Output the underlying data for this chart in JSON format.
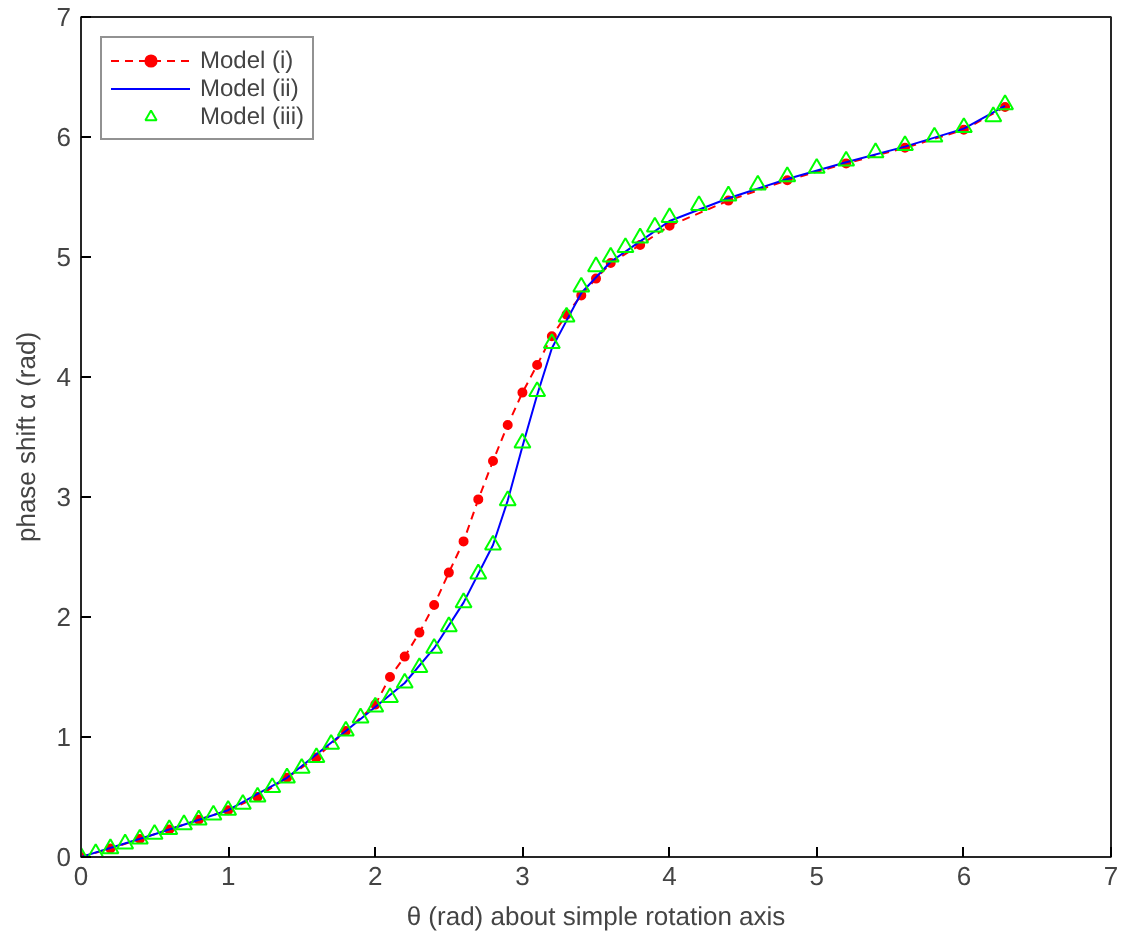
{
  "chart_data": {
    "type": "line",
    "xlabel": "θ (rad) about simple rotation axis",
    "ylabel": "phase shift α (rad)",
    "xlim": [
      0,
      7
    ],
    "ylim": [
      0,
      7
    ],
    "xticks": [
      0,
      1,
      2,
      3,
      4,
      5,
      6,
      7
    ],
    "yticks": [
      0,
      1,
      2,
      3,
      4,
      5,
      6,
      7
    ],
    "grid": false,
    "legend": "top left",
    "series": [
      {
        "name": "Model (i)",
        "color": "#ff0000",
        "line_style": "dashed",
        "marker": "circle",
        "x": [
          0,
          0.2,
          0.4,
          0.6,
          0.8,
          1.0,
          1.2,
          1.4,
          1.6,
          1.8,
          2.0,
          2.1,
          2.2,
          2.3,
          2.4,
          2.5,
          2.6,
          2.7,
          2.8,
          2.9,
          3.0,
          3.1,
          3.2,
          3.3,
          3.4,
          3.5,
          3.6,
          3.8,
          4.0,
          4.4,
          4.8,
          5.2,
          5.6,
          6.0,
          6.28
        ],
        "values": [
          0,
          0.07,
          0.15,
          0.23,
          0.31,
          0.39,
          0.5,
          0.66,
          0.83,
          1.05,
          1.27,
          1.5,
          1.67,
          1.87,
          2.1,
          2.37,
          2.63,
          2.98,
          3.3,
          3.6,
          3.87,
          4.1,
          4.34,
          4.52,
          4.68,
          4.82,
          4.95,
          5.1,
          5.26,
          5.47,
          5.64,
          5.78,
          5.91,
          6.06,
          6.25
        ]
      },
      {
        "name": "Model (ii)",
        "color": "#0000ff",
        "line_style": "solid",
        "marker": "none",
        "x": [
          0,
          0.5,
          1.0,
          1.4,
          1.8,
          2.0,
          2.2,
          2.4,
          2.6,
          2.8,
          2.9,
          3.0,
          3.1,
          3.2,
          3.3,
          3.4,
          3.6,
          3.8,
          4.0,
          4.4,
          4.8,
          5.2,
          5.6,
          6.0,
          6.28
        ],
        "values": [
          0,
          0.19,
          0.39,
          0.66,
          1.05,
          1.25,
          1.45,
          1.74,
          2.12,
          2.6,
          2.97,
          3.42,
          3.85,
          4.24,
          4.47,
          4.7,
          4.96,
          5.13,
          5.3,
          5.49,
          5.65,
          5.79,
          5.92,
          6.07,
          6.26
        ]
      },
      {
        "name": "Model (iii)",
        "type": "scatter",
        "color": "#00ff00",
        "marker": "triangle",
        "x": [
          0,
          0.1,
          0.2,
          0.3,
          0.4,
          0.5,
          0.6,
          0.7,
          0.8,
          0.9,
          1.0,
          1.1,
          1.2,
          1.3,
          1.4,
          1.5,
          1.6,
          1.7,
          1.8,
          1.9,
          2.0,
          2.1,
          2.2,
          2.3,
          2.4,
          2.5,
          2.6,
          2.7,
          2.8,
          2.9,
          3.0,
          3.1,
          3.2,
          3.3,
          3.4,
          3.5,
          3.6,
          3.7,
          3.8,
          3.9,
          4.0,
          4.2,
          4.4,
          4.6,
          4.8,
          5.0,
          5.2,
          5.4,
          5.6,
          5.8,
          6.0,
          6.2,
          6.28
        ],
        "values": [
          0,
          0.03,
          0.07,
          0.11,
          0.15,
          0.19,
          0.23,
          0.27,
          0.31,
          0.35,
          0.39,
          0.44,
          0.5,
          0.58,
          0.66,
          0.74,
          0.83,
          0.94,
          1.05,
          1.16,
          1.25,
          1.33,
          1.45,
          1.58,
          1.74,
          1.92,
          2.12,
          2.36,
          2.6,
          2.97,
          3.45,
          3.88,
          4.28,
          4.5,
          4.75,
          4.92,
          5.0,
          5.08,
          5.16,
          5.25,
          5.33,
          5.43,
          5.51,
          5.6,
          5.67,
          5.74,
          5.8,
          5.87,
          5.93,
          6.0,
          6.08,
          6.17,
          6.27
        ]
      }
    ]
  }
}
